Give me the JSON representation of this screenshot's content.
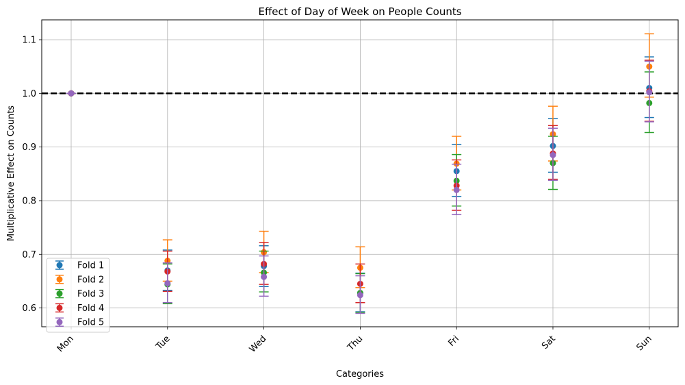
{
  "chart_data": {
    "type": "scatter",
    "title": "Effect of Day of Week on People Counts",
    "xlabel": "Categories",
    "ylabel": "Multiplicative Effect on Counts",
    "categories": [
      "Mon",
      "Tue",
      "Wed",
      "Thu",
      "Fri",
      "Sat",
      "Sun"
    ],
    "ylim": [
      0.565,
      1.137
    ],
    "yticks": [
      "0.6",
      "0.7",
      "0.8",
      "0.9",
      "1.0",
      "1.1"
    ],
    "grid": true,
    "legend_position": "lower-left",
    "reference_line": {
      "y": 1.0,
      "style": "dashed",
      "color": "#000000"
    },
    "series": [
      {
        "name": "Fold 1",
        "color": "#1f77b4",
        "values": [
          1.0,
          0.67,
          0.678,
          0.628,
          0.855,
          0.902,
          1.01
        ],
        "lower": [
          1.0,
          0.633,
          0.64,
          0.593,
          0.808,
          0.853,
          0.955
        ],
        "upper": [
          1.0,
          0.708,
          0.716,
          0.665,
          0.905,
          0.953,
          1.068
        ]
      },
      {
        "name": "Fold 2",
        "color": "#ff7f0e",
        "values": [
          1.0,
          0.688,
          0.704,
          0.675,
          0.869,
          0.924,
          1.05
        ],
        "lower": [
          1.0,
          0.65,
          0.666,
          0.638,
          0.82,
          0.874,
          0.993
        ],
        "upper": [
          1.0,
          0.727,
          0.743,
          0.714,
          0.92,
          0.976,
          1.111
        ]
      },
      {
        "name": "Fold 3",
        "color": "#2ca02c",
        "values": [
          1.0,
          0.644,
          0.666,
          0.628,
          0.837,
          0.87,
          0.982
        ],
        "lower": [
          1.0,
          0.608,
          0.63,
          0.592,
          0.79,
          0.821,
          0.927
        ],
        "upper": [
          1.0,
          0.682,
          0.706,
          0.664,
          0.886,
          0.92,
          1.04
        ]
      },
      {
        "name": "Fold 4",
        "color": "#d62728",
        "values": [
          1.0,
          0.668,
          0.682,
          0.645,
          0.828,
          0.888,
          1.004
        ],
        "lower": [
          1.0,
          0.631,
          0.644,
          0.61,
          0.782,
          0.84,
          0.948
        ],
        "upper": [
          1.0,
          0.706,
          0.722,
          0.682,
          0.876,
          0.94,
          1.062
        ]
      },
      {
        "name": "Fold 5",
        "color": "#9467bd",
        "values": [
          1.0,
          0.646,
          0.658,
          0.624,
          0.82,
          0.885,
          1.002
        ],
        "lower": [
          1.0,
          0.61,
          0.622,
          0.59,
          0.774,
          0.838,
          0.947
        ],
        "upper": [
          1.0,
          0.684,
          0.697,
          0.66,
          0.868,
          0.935,
          1.06
        ]
      }
    ]
  }
}
